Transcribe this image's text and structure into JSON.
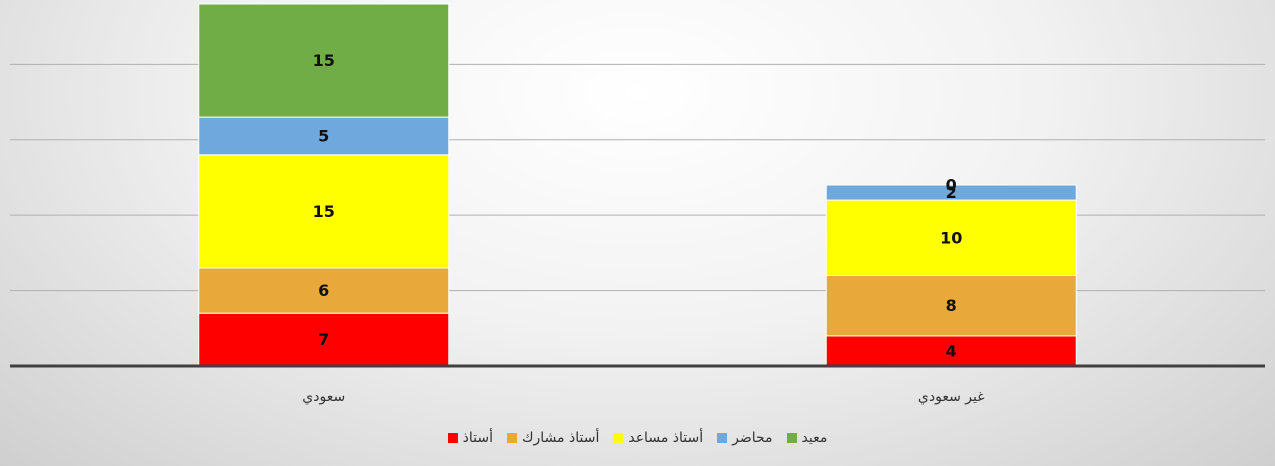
{
  "chart_data": {
    "type": "stacked_bar",
    "categories": [
      "سعودي",
      "غير سعودي"
    ],
    "series": [
      {
        "name": "أستاذ",
        "color": "#ff0000",
        "values": [
          7,
          4
        ]
      },
      {
        "name": "أستاذ مشارك",
        "color": "#e9a93a",
        "values": [
          6,
          8
        ]
      },
      {
        "name": "أستاذ مساعد",
        "color": "#ffff00",
        "values": [
          15,
          10
        ]
      },
      {
        "name": "محاضر",
        "color": "#6fa8dc",
        "values": [
          5,
          2
        ]
      },
      {
        "name": "معيد",
        "color": "#70ad47",
        "values": [
          15,
          0
        ]
      }
    ],
    "ylim": [
      0,
      48
    ],
    "yticks": [
      0,
      10,
      20,
      30,
      40
    ],
    "grid": true,
    "legend": "bottom"
  }
}
